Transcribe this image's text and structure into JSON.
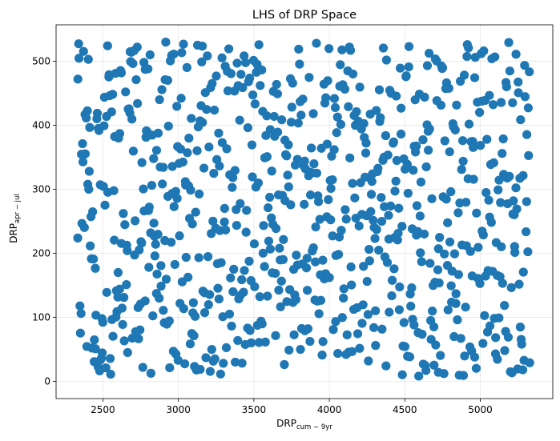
{
  "chart_data": {
    "type": "scatter",
    "title": "LHS of DRP Space",
    "xlabel": {
      "base": "DRP",
      "sub": "cum − 9yr"
    },
    "ylabel": {
      "base": "DRP",
      "sub": "apr − jul"
    },
    "xlim": [
      2190,
      5480
    ],
    "ylim": [
      -27,
      557
    ],
    "xticks": [
      2500,
      3000,
      3500,
      4000,
      4500,
      5000
    ],
    "yticks": [
      0,
      100,
      200,
      300,
      400,
      500
    ],
    "grid": true,
    "point_color": "#1f77b4",
    "sampling": {
      "n": 800,
      "x_range": [
        2330,
        5330
      ],
      "y_range": [
        8,
        530
      ]
    }
  }
}
